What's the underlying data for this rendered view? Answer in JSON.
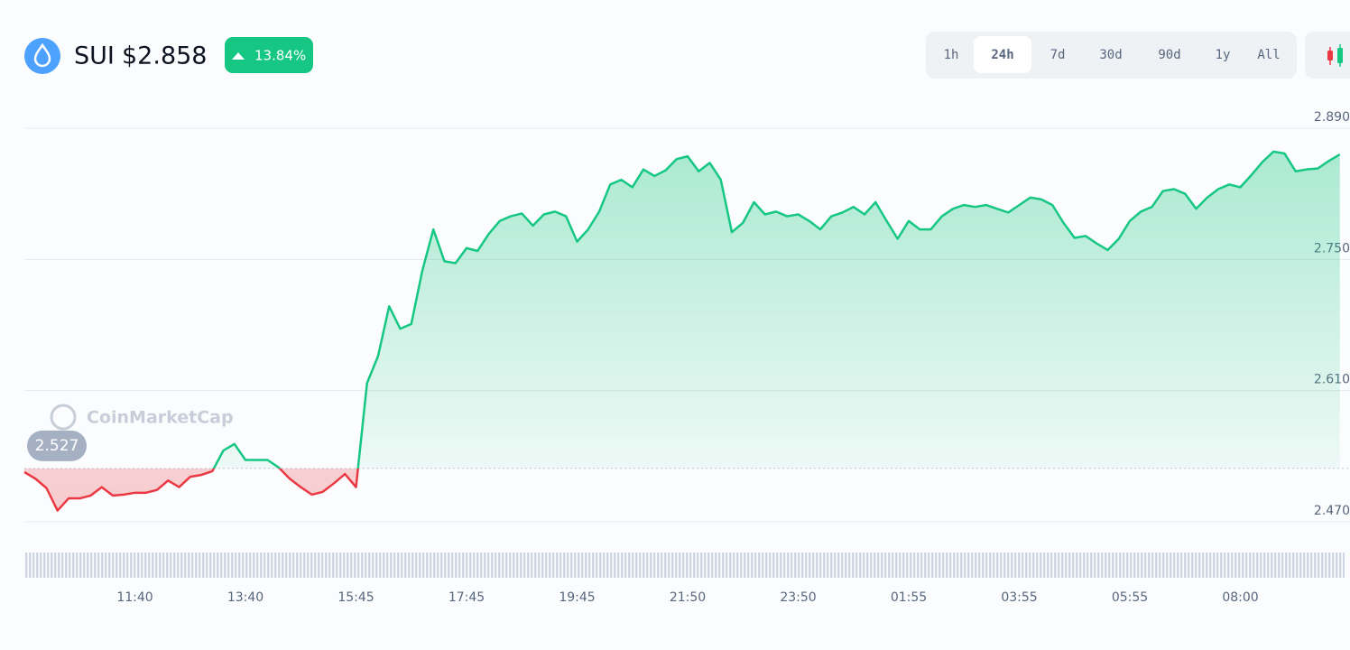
{
  "header": {
    "symbol": "SUI",
    "price": "$2.858",
    "change": "13.84%"
  },
  "range_buttons": {
    "labels": [
      "1h",
      "24h",
      "7d",
      "30d",
      "90d",
      "1y",
      "All"
    ],
    "active": "24h"
  },
  "watermark": "CoinMarketCap",
  "chart_data": {
    "type": "line",
    "categories": [
      null,
      null,
      null,
      null,
      null,
      null,
      null,
      null,
      null,
      null,
      "11:40",
      null,
      null,
      null,
      null,
      null,
      null,
      null,
      null,
      null,
      "13:40",
      null,
      null,
      null,
      null,
      null,
      null,
      null,
      null,
      null,
      "15:45",
      null,
      null,
      null,
      null,
      null,
      null,
      null,
      null,
      null,
      "17:45",
      null,
      null,
      null,
      null,
      null,
      null,
      null,
      null,
      null,
      "19:45",
      null,
      null,
      null,
      null,
      null,
      null,
      null,
      null,
      null,
      "21:50",
      null,
      null,
      null,
      null,
      null,
      null,
      null,
      null,
      null,
      "23:50",
      null,
      null,
      null,
      null,
      null,
      null,
      null,
      null,
      null,
      "01:55",
      null,
      null,
      null,
      null,
      null,
      null,
      null,
      null,
      null,
      "03:55",
      null,
      null,
      null,
      null,
      null,
      null,
      null,
      null,
      null,
      "05:55",
      null,
      null,
      null,
      null,
      null,
      null,
      null,
      null,
      null,
      "08:00",
      null,
      null,
      null,
      null,
      null,
      null,
      null,
      null,
      null
    ],
    "values": [
      2.523,
      2.516,
      2.506,
      2.482,
      2.495,
      2.495,
      2.498,
      2.507,
      2.498,
      2.499,
      2.501,
      2.501,
      2.504,
      2.514,
      2.507,
      2.518,
      2.52,
      2.524,
      2.546,
      2.553,
      2.536,
      2.536,
      2.536,
      2.528,
      2.516,
      2.507,
      2.499,
      2.502,
      2.511,
      2.521,
      2.507,
      2.618,
      2.647,
      2.7,
      2.676,
      2.681,
      2.738,
      2.782,
      2.748,
      2.746,
      2.762,
      2.759,
      2.777,
      2.791,
      2.796,
      2.799,
      2.786,
      2.798,
      2.801,
      2.796,
      2.769,
      2.782,
      2.801,
      2.83,
      2.835,
      2.827,
      2.846,
      2.839,
      2.845,
      2.857,
      2.86,
      2.844,
      2.853,
      2.835,
      2.779,
      2.789,
      2.811,
      2.798,
      2.801,
      2.796,
      2.798,
      2.791,
      2.782,
      2.796,
      2.8,
      2.806,
      2.798,
      2.811,
      2.791,
      2.772,
      2.791,
      2.782,
      2.782,
      2.796,
      2.804,
      2.808,
      2.806,
      2.808,
      2.804,
      2.8,
      2.808,
      2.816,
      2.814,
      2.808,
      2.789,
      2.773,
      2.775,
      2.767,
      2.76,
      2.772,
      2.791,
      2.801,
      2.806,
      2.823,
      2.825,
      2.82,
      2.804,
      2.816,
      2.825,
      2.83,
      2.827,
      2.84,
      2.854,
      2.865,
      2.863,
      2.844,
      2.846,
      2.847,
      2.855,
      2.862
    ],
    "baseline": 2.527,
    "colors": {
      "above": "#16c784",
      "below": "#ea3943"
    },
    "ylim": [
      2.47,
      2.89
    ],
    "yticks": [
      {
        "value": 2.47,
        "label": "2.470"
      },
      {
        "value": 2.61,
        "label": "2.610"
      },
      {
        "value": 2.75,
        "label": "2.750"
      },
      {
        "value": 2.89,
        "label": "2.890"
      }
    ],
    "grid": true
  }
}
